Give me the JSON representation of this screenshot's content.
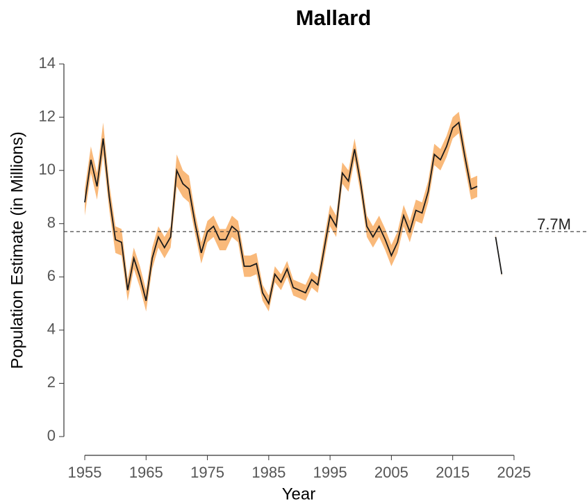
{
  "chart_data": {
    "type": "line",
    "title": "Mallard",
    "xlabel": "Year",
    "ylabel": "Population Estimate (in Millions)",
    "x": [
      1955,
      1956,
      1957,
      1958,
      1959,
      1960,
      1961,
      1962,
      1963,
      1964,
      1965,
      1966,
      1967,
      1968,
      1969,
      1970,
      1971,
      1972,
      1973,
      1974,
      1975,
      1976,
      1977,
      1978,
      1979,
      1980,
      1981,
      1982,
      1983,
      1984,
      1985,
      1986,
      1987,
      1988,
      1989,
      1990,
      1991,
      1992,
      1993,
      1994,
      1995,
      1996,
      1997,
      1998,
      1999,
      2000,
      2001,
      2002,
      2003,
      2004,
      2005,
      2006,
      2007,
      2008,
      2009,
      2010,
      2011,
      2012,
      2013,
      2014,
      2015,
      2016,
      2017,
      2018,
      2019,
      2020,
      2021,
      2022,
      2023
    ],
    "series": [
      {
        "color": "#1a1a1a",
        "band_color": "#f9b97a",
        "values": [
          8.8,
          10.4,
          9.4,
          11.2,
          9.0,
          7.4,
          7.3,
          5.5,
          6.7,
          6.0,
          5.1,
          6.7,
          7.5,
          7.1,
          7.5,
          10.0,
          9.5,
          9.3,
          8.0,
          6.9,
          7.7,
          7.9,
          7.4,
          7.4,
          7.9,
          7.7,
          6.4,
          6.4,
          6.5,
          5.4,
          5.0,
          6.1,
          5.8,
          6.3,
          5.6,
          5.5,
          5.4,
          5.9,
          5.7,
          7.0,
          8.3,
          7.9,
          9.9,
          9.6,
          10.8,
          9.5,
          7.9,
          7.5,
          7.9,
          7.4,
          6.8,
          7.3,
          8.3,
          7.7,
          8.5,
          8.4,
          9.2,
          10.6,
          10.4,
          10.9,
          11.6,
          11.8,
          10.5,
          9.3,
          9.4,
          null,
          null,
          7.5,
          6.1
        ],
        "errors": [
          0.5,
          0.5,
          0.5,
          0.6,
          0.5,
          0.5,
          0.5,
          0.4,
          0.4,
          0.4,
          0.4,
          0.4,
          0.4,
          0.4,
          0.4,
          0.6,
          0.5,
          0.5,
          0.4,
          0.4,
          0.4,
          0.4,
          0.4,
          0.4,
          0.4,
          0.4,
          0.4,
          0.4,
          0.4,
          0.3,
          0.3,
          0.3,
          0.3,
          0.3,
          0.3,
          0.3,
          0.3,
          0.3,
          0.3,
          0.4,
          0.4,
          0.4,
          0.4,
          0.4,
          0.4,
          0.4,
          0.4,
          0.4,
          0.4,
          0.4,
          0.4,
          0.4,
          0.4,
          0.4,
          0.4,
          0.4,
          0.4,
          0.4,
          0.4,
          0.4,
          0.4,
          0.4,
          0.4,
          0.4,
          0.4,
          null,
          null,
          0.1,
          0.1
        ]
      }
    ],
    "hline": {
      "value": 7.7,
      "label": "7.7M"
    },
    "xlim": [
      1951.6,
      2036.9
    ],
    "ylim": [
      0,
      14
    ],
    "xticks": [
      1955,
      1965,
      1975,
      1985,
      1995,
      2005,
      2015,
      2025
    ],
    "yticks": [
      0,
      2,
      4,
      6,
      8,
      10,
      12,
      14
    ]
  }
}
